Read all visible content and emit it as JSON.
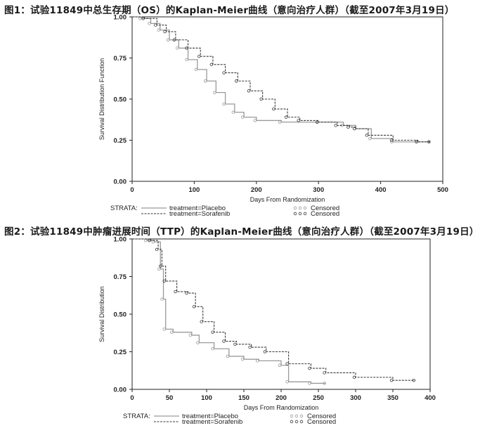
{
  "figure1_title": "图1：试验11849中总生存期（OS）的Kaplan-Meier曲线（意向治疗人群）（截至2007年3月19日）",
  "figure2_title": "图2：试验11849中肿瘤进展时间（TTP）的Kaplan-Meier曲线（意向治疗人群）（截至2007年3月19日）",
  "colors": {
    "placebo": "#9a9a9a",
    "sorafenib": "#3a3a3a",
    "axis": "#222222"
  },
  "chart_data": [
    {
      "type": "line",
      "title": "",
      "xlabel": "Days From Randomization",
      "ylabel": "Survival Distribution Function",
      "xlim": [
        0,
        500
      ],
      "ylim": [
        0,
        1
      ],
      "x_ticks": [
        "0",
        "100",
        "200",
        "300",
        "400",
        "500"
      ],
      "y_ticks": [
        "0.00",
        "0.25",
        "0.50",
        "0.75",
        "1.00"
      ],
      "legend": {
        "strata_label": "STRATA:",
        "entries": [
          "treatment=Placebo",
          "treatment=Sorafenib"
        ],
        "censored_label": "Censored"
      },
      "series": [
        {
          "name": "treatment=Placebo",
          "points": [
            [
              0,
              1.0
            ],
            [
              15,
              0.99
            ],
            [
              30,
              0.96
            ],
            [
              45,
              0.92
            ],
            [
              60,
              0.86
            ],
            [
              75,
              0.81
            ],
            [
              90,
              0.74
            ],
            [
              105,
              0.68
            ],
            [
              120,
              0.61
            ],
            [
              135,
              0.54
            ],
            [
              150,
              0.47
            ],
            [
              165,
              0.42
            ],
            [
              180,
              0.39
            ],
            [
              200,
              0.37
            ],
            [
              240,
              0.36
            ],
            [
              300,
              0.36
            ],
            [
              340,
              0.34
            ],
            [
              360,
              0.32
            ],
            [
              385,
              0.26
            ],
            [
              420,
              0.24
            ],
            [
              460,
              0.24
            ],
            [
              480,
              0.24
            ]
          ]
        },
        {
          "name": "treatment=Sorafenib",
          "points": [
            [
              0,
              1.0
            ],
            [
              20,
              0.99
            ],
            [
              40,
              0.95
            ],
            [
              55,
              0.91
            ],
            [
              70,
              0.86
            ],
            [
              90,
              0.81
            ],
            [
              110,
              0.76
            ],
            [
              130,
              0.71
            ],
            [
              150,
              0.66
            ],
            [
              170,
              0.61
            ],
            [
              190,
              0.55
            ],
            [
              210,
              0.5
            ],
            [
              230,
              0.44
            ],
            [
              250,
              0.39
            ],
            [
              270,
              0.37
            ],
            [
              300,
              0.36
            ],
            [
              330,
              0.34
            ],
            [
              350,
              0.33
            ],
            [
              360,
              0.32
            ],
            [
              380,
              0.28
            ],
            [
              420,
              0.25
            ],
            [
              460,
              0.24
            ],
            [
              480,
              0.24
            ]
          ]
        }
      ]
    },
    {
      "type": "line",
      "title": "",
      "xlabel": "Days From Randomization",
      "ylabel": "Survival Distribution",
      "xlim": [
        0,
        400
      ],
      "ylim": [
        0,
        1
      ],
      "x_ticks": [
        "0",
        "50",
        "100",
        "150",
        "200",
        "250",
        "300",
        "350",
        "400"
      ],
      "y_ticks": [
        "0.00",
        "0.25",
        "0.50",
        "0.75",
        "1.00"
      ],
      "legend": {
        "strata_label": "STRATA:",
        "entries": [
          "treatment=Placebo",
          "treatment=Sorafenib"
        ],
        "censored_label": "Censored"
      },
      "series": [
        {
          "name": "treatment=Placebo",
          "points": [
            [
              0,
              1.0
            ],
            [
              20,
              0.99
            ],
            [
              30,
              0.98
            ],
            [
              38,
              0.8
            ],
            [
              42,
              0.6
            ],
            [
              45,
              0.4
            ],
            [
              55,
              0.38
            ],
            [
              80,
              0.36
            ],
            [
              90,
              0.31
            ],
            [
              110,
              0.27
            ],
            [
              130,
              0.22
            ],
            [
              150,
              0.2
            ],
            [
              170,
              0.19
            ],
            [
              200,
              0.16
            ],
            [
              210,
              0.05
            ],
            [
              240,
              0.04
            ],
            [
              260,
              0.04
            ]
          ]
        },
        {
          "name": "treatment=Sorafenib",
          "points": [
            [
              0,
              1.0
            ],
            [
              25,
              0.99
            ],
            [
              35,
              0.93
            ],
            [
              40,
              0.82
            ],
            [
              45,
              0.72
            ],
            [
              60,
              0.65
            ],
            [
              75,
              0.64
            ],
            [
              85,
              0.55
            ],
            [
              95,
              0.45
            ],
            [
              110,
              0.38
            ],
            [
              125,
              0.32
            ],
            [
              140,
              0.3
            ],
            [
              160,
              0.28
            ],
            [
              180,
              0.25
            ],
            [
              210,
              0.17
            ],
            [
              240,
              0.14
            ],
            [
              260,
              0.11
            ],
            [
              300,
              0.08
            ],
            [
              350,
              0.06
            ],
            [
              380,
              0.06
            ]
          ]
        }
      ]
    }
  ]
}
